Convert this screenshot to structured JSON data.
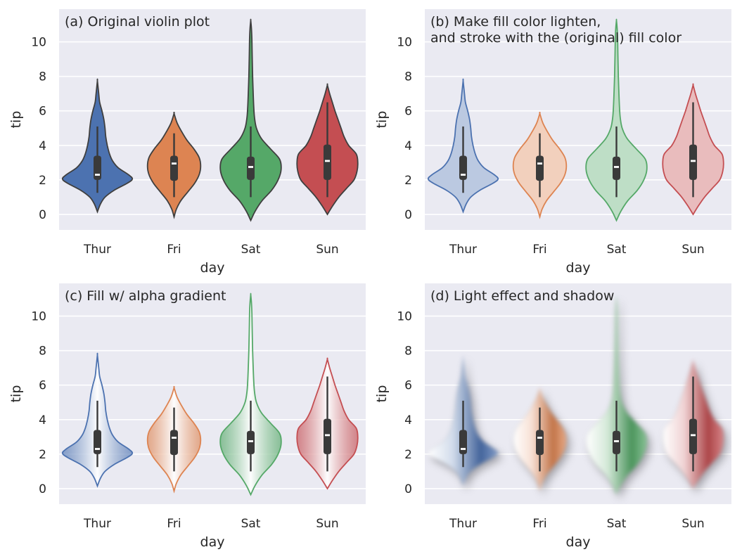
{
  "figure": {
    "background": "#ffffff",
    "panel_background": "#eaeaf2",
    "grid_color": "#ffffff",
    "inner_box_color": "#3a3a3a",
    "median_color": "#ffffff",
    "dark_stroke": "#3f3f3f"
  },
  "chart_data": [
    {
      "type": "violin",
      "title_lines": [
        "(a) Original violin plot"
      ],
      "style": "original",
      "xlabel": "day",
      "ylabel": "tip",
      "categories": [
        "Thur",
        "Fri",
        "Sat",
        "Sun"
      ],
      "colors": [
        "#4c72b0",
        "#dd8452",
        "#55a868",
        "#c44e52"
      ],
      "yticks": [
        0,
        2,
        4,
        6,
        8,
        10
      ],
      "ylim": [
        -0.9,
        11.9
      ],
      "grid": true,
      "series": [
        {
          "name": "Thur",
          "min": 1.25,
          "q1": 2.0,
          "median": 2.3,
          "q3": 3.4,
          "max": 5.1,
          "kde_low": 0.15,
          "kde_high": 7.75,
          "profile": [
            [
              0.15,
              0.0
            ],
            [
              0.6,
              0.08
            ],
            [
              1.0,
              0.2
            ],
            [
              1.4,
              0.44
            ],
            [
              1.8,
              0.78
            ],
            [
              2.05,
              0.92
            ],
            [
              2.3,
              0.82
            ],
            [
              2.7,
              0.55
            ],
            [
              3.1,
              0.4
            ],
            [
              3.5,
              0.32
            ],
            [
              4.0,
              0.26
            ],
            [
              4.5,
              0.22
            ],
            [
              5.0,
              0.2
            ],
            [
              5.5,
              0.17
            ],
            [
              6.0,
              0.12
            ],
            [
              6.5,
              0.06
            ],
            [
              7.0,
              0.035
            ],
            [
              7.75,
              0.0
            ]
          ]
        },
        {
          "name": "Fri",
          "min": 1.0,
          "q1": 1.95,
          "median": 2.95,
          "q3": 3.4,
          "max": 4.7,
          "kde_low": -0.15,
          "kde_high": 5.85,
          "profile": [
            [
              -0.15,
              0.0
            ],
            [
              0.3,
              0.06
            ],
            [
              0.8,
              0.18
            ],
            [
              1.3,
              0.36
            ],
            [
              1.8,
              0.54
            ],
            [
              2.3,
              0.66
            ],
            [
              2.8,
              0.7
            ],
            [
              3.3,
              0.66
            ],
            [
              3.8,
              0.52
            ],
            [
              4.3,
              0.34
            ],
            [
              4.8,
              0.2
            ],
            [
              5.3,
              0.08
            ],
            [
              5.85,
              0.0
            ]
          ]
        },
        {
          "name": "Sat",
          "min": 1.0,
          "q1": 2.0,
          "median": 2.75,
          "q3": 3.35,
          "max": 5.1,
          "kde_low": -0.35,
          "kde_high": 11.25,
          "profile": [
            [
              -0.35,
              0.0
            ],
            [
              0.2,
              0.12
            ],
            [
              0.8,
              0.3
            ],
            [
              1.4,
              0.55
            ],
            [
              2.0,
              0.72
            ],
            [
              2.6,
              0.8
            ],
            [
              3.2,
              0.76
            ],
            [
              3.8,
              0.52
            ],
            [
              4.4,
              0.28
            ],
            [
              5.0,
              0.15
            ],
            [
              5.6,
              0.1
            ],
            [
              6.2,
              0.08
            ],
            [
              7.0,
              0.065
            ],
            [
              8.0,
              0.05
            ],
            [
              9.0,
              0.04
            ],
            [
              9.6,
              0.035
            ],
            [
              10.2,
              0.03
            ],
            [
              10.8,
              0.018
            ],
            [
              11.25,
              0.0
            ]
          ]
        },
        {
          "name": "Sun",
          "min": 1.0,
          "q1": 2.0,
          "median": 3.1,
          "q3": 4.05,
          "max": 6.5,
          "kde_low": 0.0,
          "kde_high": 7.5,
          "profile": [
            [
              0.0,
              0.0
            ],
            [
              0.5,
              0.14
            ],
            [
              1.0,
              0.3
            ],
            [
              1.5,
              0.5
            ],
            [
              2.0,
              0.7
            ],
            [
              2.5,
              0.78
            ],
            [
              3.0,
              0.8
            ],
            [
              3.5,
              0.76
            ],
            [
              4.0,
              0.56
            ],
            [
              4.5,
              0.44
            ],
            [
              5.0,
              0.36
            ],
            [
              5.5,
              0.28
            ],
            [
              6.0,
              0.2
            ],
            [
              6.5,
              0.13
            ],
            [
              7.0,
              0.06
            ],
            [
              7.5,
              0.0
            ]
          ]
        }
      ]
    },
    {
      "type": "violin",
      "title_lines": [
        "(b) Make fill color lighten,",
        "and stroke with the (original) fill color"
      ],
      "style": "lighten",
      "xlabel": "day",
      "ylabel": "tip",
      "categories": [
        "Thur",
        "Fri",
        "Sat",
        "Sun"
      ],
      "colors": [
        "#4c72b0",
        "#dd8452",
        "#55a868",
        "#c44e52"
      ],
      "yticks": [
        0,
        2,
        4,
        6,
        8,
        10
      ],
      "ylim": [
        -0.9,
        11.9
      ],
      "grid": true,
      "series": "same-as-a"
    },
    {
      "type": "violin",
      "title_lines": [
        "(c) Fill w/ alpha gradient"
      ],
      "style": "gradient",
      "xlabel": "day",
      "ylabel": "tip",
      "categories": [
        "Thur",
        "Fri",
        "Sat",
        "Sun"
      ],
      "colors": [
        "#4c72b0",
        "#dd8452",
        "#55a868",
        "#c44e52"
      ],
      "yticks": [
        0,
        2,
        4,
        6,
        8,
        10
      ],
      "ylim": [
        -0.9,
        11.9
      ],
      "grid": true,
      "series": "same-as-a"
    },
    {
      "type": "violin",
      "title_lines": [
        "(d) Light effect and shadow"
      ],
      "style": "light-shadow",
      "xlabel": "day",
      "ylabel": "tip",
      "categories": [
        "Thur",
        "Fri",
        "Sat",
        "Sun"
      ],
      "colors": [
        "#4c72b0",
        "#dd8452",
        "#55a868",
        "#c44e52"
      ],
      "yticks": [
        0,
        2,
        4,
        6,
        8,
        10
      ],
      "ylim": [
        -0.9,
        11.9
      ],
      "grid": true,
      "series": "same-as-a"
    }
  ]
}
